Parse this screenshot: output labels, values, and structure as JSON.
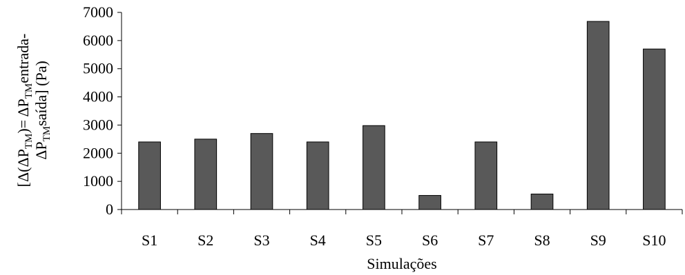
{
  "chart_data": {
    "type": "bar",
    "categories": [
      "S1",
      "S2",
      "S3",
      "S4",
      "S5",
      "S6",
      "S7",
      "S8",
      "S9",
      "S10"
    ],
    "values": [
      2400,
      2500,
      2700,
      2400,
      2980,
      500,
      2400,
      550,
      6680,
      5700
    ],
    "xlabel": "Simulações",
    "ylabel_parts": {
      "line1": {
        "open": "[Δ(ΔP",
        "sub1": "TM",
        "mid": ")= ΔP",
        "sub2": "TM",
        "end": "entrada-"
      },
      "line2": {
        "start": "ΔP",
        "sub": "TM",
        "end": "saída] (Pa)"
      }
    },
    "ylim": [
      0,
      7000
    ],
    "yticks": [
      0,
      1000,
      2000,
      3000,
      4000,
      5000,
      6000,
      7000
    ],
    "grid": false,
    "bar_color": "#595959"
  }
}
